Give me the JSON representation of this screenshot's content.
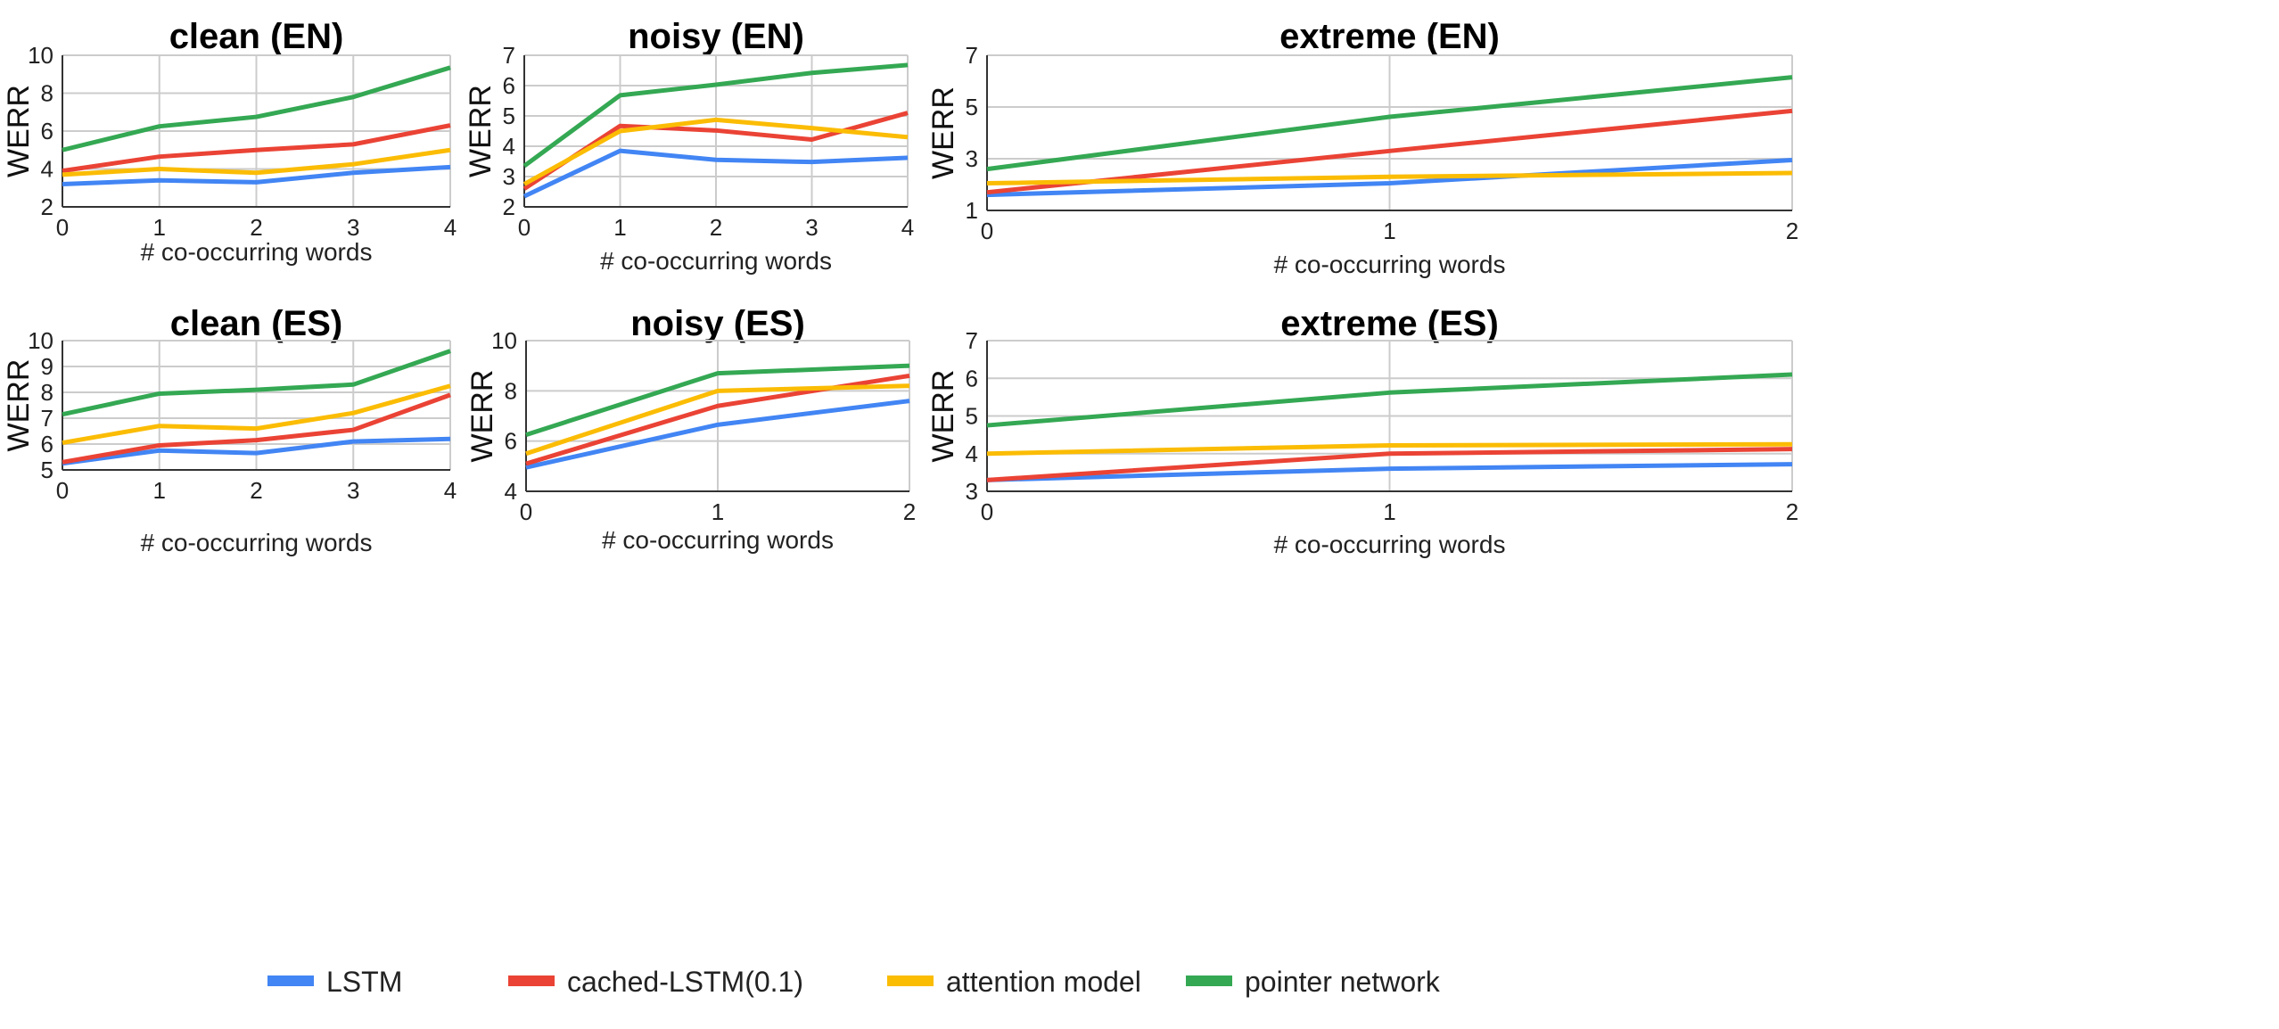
{
  "legend": {
    "placement": "bottom"
  },
  "colors": {
    "LSTM": "#4285F4",
    "cached-LSTM(0.1)": "#EA4335",
    "attention model": "#FBBC04",
    "pointer network": "#34A853"
  },
  "chart_data": [
    {
      "type": "line",
      "title": "clean (EN)",
      "xlabel": "# co-occurring words",
      "ylabel": "WERR",
      "x": [
        0,
        1,
        2,
        3,
        4
      ],
      "ylim": [
        2,
        10
      ],
      "yticks": [
        2,
        4,
        6,
        8,
        10
      ],
      "grid": true,
      "series": [
        {
          "name": "LSTM",
          "values": [
            3.2,
            3.4,
            3.3,
            3.8,
            4.1
          ]
        },
        {
          "name": "cached-LSTM(0.1)",
          "values": [
            3.9,
            4.65,
            5.0,
            5.3,
            6.3
          ]
        },
        {
          "name": "attention model",
          "values": [
            3.7,
            4.0,
            3.8,
            4.25,
            5.0
          ]
        },
        {
          "name": "pointer network",
          "values": [
            5.0,
            6.25,
            6.75,
            7.8,
            9.35
          ]
        }
      ]
    },
    {
      "type": "line",
      "title": "noisy (EN)",
      "xlabel": "# co-occurring words",
      "ylabel": "WERR",
      "x": [
        0,
        1,
        2,
        3,
        4
      ],
      "ylim": [
        2,
        7
      ],
      "yticks": [
        2,
        3,
        4,
        5,
        6,
        7
      ],
      "grid": true,
      "series": [
        {
          "name": "LSTM",
          "values": [
            2.35,
            3.85,
            3.55,
            3.48,
            3.62
          ]
        },
        {
          "name": "cached-LSTM(0.1)",
          "values": [
            2.6,
            4.67,
            4.52,
            4.22,
            5.1
          ]
        },
        {
          "name": "attention model",
          "values": [
            2.75,
            4.5,
            4.87,
            4.6,
            4.3
          ]
        },
        {
          "name": "pointer network",
          "values": [
            3.35,
            5.68,
            6.03,
            6.42,
            6.68
          ]
        }
      ]
    },
    {
      "type": "line",
      "title": "extreme (EN)",
      "xlabel": "# co-occurring words",
      "ylabel": "WERR",
      "x": [
        0,
        1,
        2
      ],
      "ylim": [
        1,
        7
      ],
      "yticks": [
        1,
        3,
        5,
        7
      ],
      "grid": true,
      "series": [
        {
          "name": "LSTM",
          "values": [
            1.6,
            2.05,
            2.95
          ]
        },
        {
          "name": "cached-LSTM(0.1)",
          "values": [
            1.7,
            3.3,
            4.85
          ]
        },
        {
          "name": "attention model",
          "values": [
            2.05,
            2.3,
            2.45
          ]
        },
        {
          "name": "pointer network",
          "values": [
            2.6,
            4.62,
            6.15
          ]
        }
      ]
    },
    {
      "type": "line",
      "title": "clean (ES)",
      "xlabel": "# co-occurring words",
      "ylabel": "WERR",
      "x": [
        0,
        1,
        2,
        3,
        4
      ],
      "ylim": [
        5,
        10
      ],
      "yticks": [
        5,
        6,
        7,
        8,
        9,
        10
      ],
      "grid": true,
      "series": [
        {
          "name": "LSTM",
          "values": [
            5.25,
            5.75,
            5.65,
            6.1,
            6.2
          ]
        },
        {
          "name": "cached-LSTM(0.1)",
          "values": [
            5.3,
            5.95,
            6.15,
            6.55,
            7.9
          ]
        },
        {
          "name": "attention model",
          "values": [
            6.05,
            6.7,
            6.6,
            7.2,
            8.25
          ]
        },
        {
          "name": "pointer network",
          "values": [
            7.15,
            7.95,
            8.1,
            8.3,
            9.6
          ]
        }
      ]
    },
    {
      "type": "line",
      "title": "noisy (ES)",
      "xlabel": "# co-occurring words",
      "ylabel": "WERR",
      "x": [
        0,
        1,
        2
      ],
      "ylim": [
        4,
        10
      ],
      "yticks": [
        4,
        6,
        8,
        10
      ],
      "grid": true,
      "series": [
        {
          "name": "LSTM",
          "values": [
            4.95,
            6.65,
            7.6
          ]
        },
        {
          "name": "cached-LSTM(0.1)",
          "values": [
            5.1,
            7.4,
            8.6
          ]
        },
        {
          "name": "attention model",
          "values": [
            5.5,
            8.0,
            8.2
          ]
        },
        {
          "name": "pointer network",
          "values": [
            6.25,
            8.7,
            9.0
          ]
        }
      ]
    },
    {
      "type": "line",
      "title": "extreme (ES)",
      "xlabel": "# co-occurring words",
      "ylabel": "WERR",
      "x": [
        0,
        1,
        2
      ],
      "ylim": [
        3,
        7
      ],
      "yticks": [
        3,
        4,
        5,
        6,
        7
      ],
      "grid": true,
      "series": [
        {
          "name": "LSTM",
          "values": [
            3.3,
            3.6,
            3.72
          ]
        },
        {
          "name": "cached-LSTM(0.1)",
          "values": [
            3.3,
            4.0,
            4.12
          ]
        },
        {
          "name": "attention model",
          "values": [
            4.0,
            4.22,
            4.25
          ]
        },
        {
          "name": "pointer network",
          "values": [
            4.75,
            5.62,
            6.1
          ]
        }
      ]
    }
  ]
}
